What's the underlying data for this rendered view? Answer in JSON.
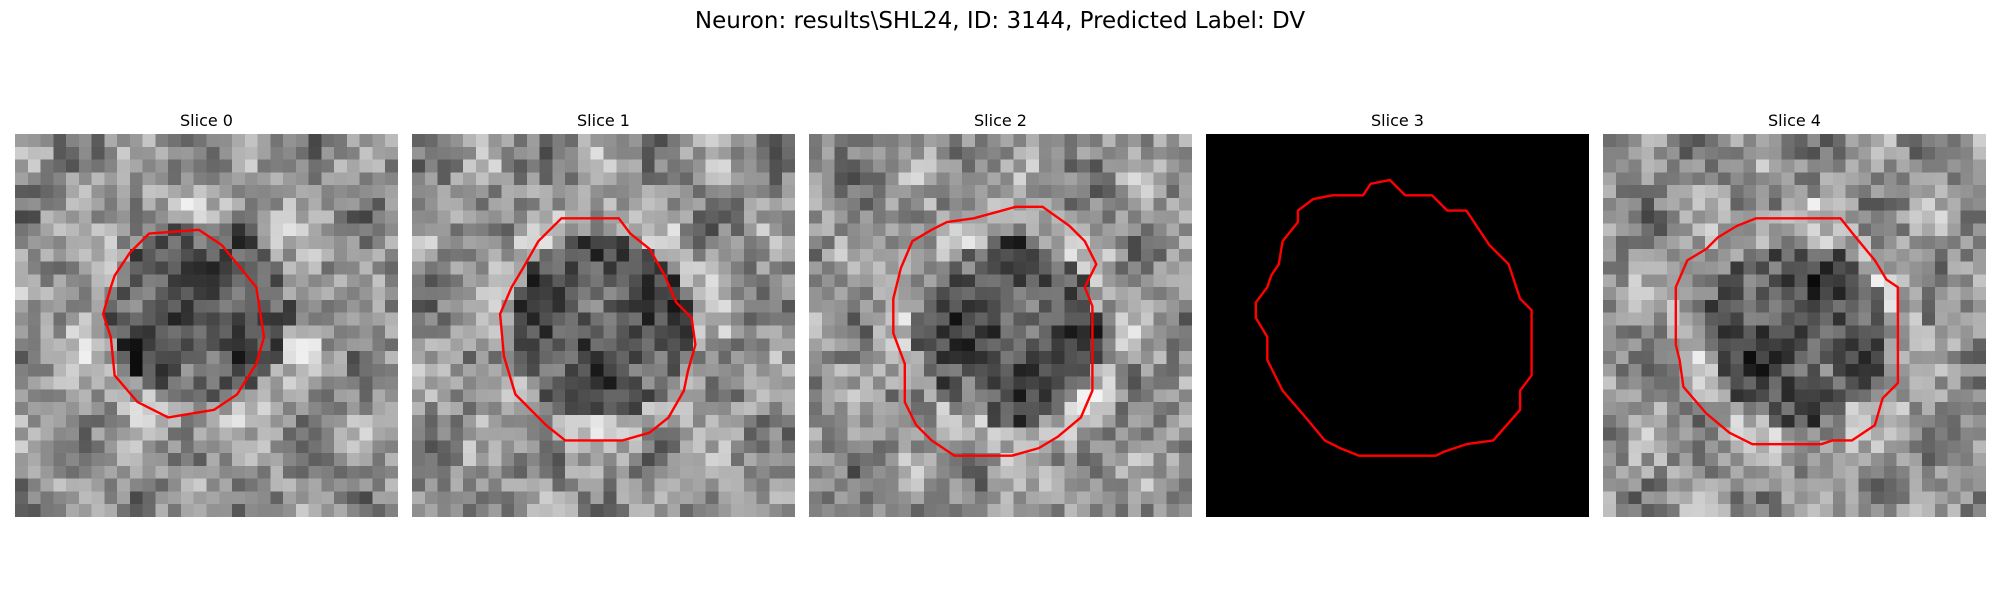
{
  "figure": {
    "title": "Neuron: results\\SHL24, ID: 3144, Predicted Label: DV"
  },
  "contour_color": "#ff0000",
  "slices": [
    {
      "title": "Slice 0",
      "image_kind": "grayscale-noise",
      "seed": 11,
      "dark_center": [
        0.48,
        0.46
      ],
      "contour": [
        [
          0.35,
          0.26
        ],
        [
          0.48,
          0.25
        ],
        [
          0.54,
          0.29
        ],
        [
          0.63,
          0.4
        ],
        [
          0.65,
          0.53
        ],
        [
          0.63,
          0.6
        ],
        [
          0.58,
          0.68
        ],
        [
          0.52,
          0.72
        ],
        [
          0.4,
          0.74
        ],
        [
          0.32,
          0.7
        ],
        [
          0.26,
          0.63
        ],
        [
          0.25,
          0.53
        ],
        [
          0.23,
          0.47
        ],
        [
          0.25,
          0.4
        ],
        [
          0.26,
          0.37
        ],
        [
          0.3,
          0.31
        ]
      ]
    },
    {
      "title": "Slice 1",
      "image_kind": "grayscale-noise",
      "seed": 23,
      "dark_center": [
        0.49,
        0.51
      ],
      "contour": [
        [
          0.39,
          0.22
        ],
        [
          0.54,
          0.22
        ],
        [
          0.57,
          0.26
        ],
        [
          0.62,
          0.3
        ],
        [
          0.66,
          0.37
        ],
        [
          0.69,
          0.44
        ],
        [
          0.73,
          0.48
        ],
        [
          0.74,
          0.55
        ],
        [
          0.72,
          0.62
        ],
        [
          0.71,
          0.67
        ],
        [
          0.67,
          0.74
        ],
        [
          0.62,
          0.78
        ],
        [
          0.55,
          0.8
        ],
        [
          0.4,
          0.8
        ],
        [
          0.35,
          0.76
        ],
        [
          0.27,
          0.68
        ],
        [
          0.24,
          0.58
        ],
        [
          0.23,
          0.47
        ],
        [
          0.26,
          0.4
        ],
        [
          0.29,
          0.35
        ],
        [
          0.33,
          0.28
        ]
      ]
    },
    {
      "title": "Slice 2",
      "image_kind": "grayscale-noise",
      "seed": 37,
      "dark_center": [
        0.52,
        0.52
      ],
      "contour": [
        [
          0.43,
          0.22
        ],
        [
          0.54,
          0.19
        ],
        [
          0.61,
          0.19
        ],
        [
          0.68,
          0.24
        ],
        [
          0.72,
          0.28
        ],
        [
          0.75,
          0.34
        ],
        [
          0.72,
          0.4
        ],
        [
          0.74,
          0.45
        ],
        [
          0.74,
          0.67
        ],
        [
          0.71,
          0.74
        ],
        [
          0.65,
          0.79
        ],
        [
          0.6,
          0.82
        ],
        [
          0.53,
          0.84
        ],
        [
          0.38,
          0.84
        ],
        [
          0.32,
          0.8
        ],
        [
          0.28,
          0.76
        ],
        [
          0.25,
          0.7
        ],
        [
          0.25,
          0.6
        ],
        [
          0.22,
          0.52
        ],
        [
          0.22,
          0.43
        ],
        [
          0.24,
          0.35
        ],
        [
          0.27,
          0.28
        ],
        [
          0.32,
          0.25
        ],
        [
          0.36,
          0.23
        ]
      ]
    },
    {
      "title": "Slice 3",
      "image_kind": "black",
      "seed": 0,
      "dark_center": [
        0.5,
        0.5
      ],
      "contour": [
        [
          0.33,
          0.16
        ],
        [
          0.41,
          0.16
        ],
        [
          0.43,
          0.13
        ],
        [
          0.48,
          0.12
        ],
        [
          0.52,
          0.16
        ],
        [
          0.59,
          0.16
        ],
        [
          0.63,
          0.2
        ],
        [
          0.68,
          0.2
        ],
        [
          0.74,
          0.29
        ],
        [
          0.79,
          0.34
        ],
        [
          0.82,
          0.43
        ],
        [
          0.85,
          0.46
        ],
        [
          0.85,
          0.63
        ],
        [
          0.82,
          0.67
        ],
        [
          0.82,
          0.72
        ],
        [
          0.75,
          0.8
        ],
        [
          0.68,
          0.81
        ],
        [
          0.62,
          0.83
        ],
        [
          0.6,
          0.84
        ],
        [
          0.4,
          0.84
        ],
        [
          0.35,
          0.82
        ],
        [
          0.31,
          0.8
        ],
        [
          0.26,
          0.74
        ],
        [
          0.2,
          0.67
        ],
        [
          0.16,
          0.59
        ],
        [
          0.16,
          0.53
        ],
        [
          0.13,
          0.48
        ],
        [
          0.13,
          0.44
        ],
        [
          0.16,
          0.4
        ],
        [
          0.17,
          0.37
        ],
        [
          0.19,
          0.34
        ],
        [
          0.2,
          0.28
        ],
        [
          0.24,
          0.23
        ],
        [
          0.24,
          0.2
        ],
        [
          0.28,
          0.17
        ]
      ]
    },
    {
      "title": "Slice 4",
      "image_kind": "grayscale-noise",
      "seed": 53,
      "dark_center": [
        0.51,
        0.52
      ],
      "contour": [
        [
          0.4,
          0.22
        ],
        [
          0.62,
          0.22
        ],
        [
          0.66,
          0.27
        ],
        [
          0.71,
          0.33
        ],
        [
          0.74,
          0.38
        ],
        [
          0.77,
          0.4
        ],
        [
          0.77,
          0.65
        ],
        [
          0.73,
          0.69
        ],
        [
          0.71,
          0.76
        ],
        [
          0.65,
          0.8
        ],
        [
          0.6,
          0.8
        ],
        [
          0.57,
          0.81
        ],
        [
          0.39,
          0.81
        ],
        [
          0.33,
          0.78
        ],
        [
          0.27,
          0.73
        ],
        [
          0.21,
          0.66
        ],
        [
          0.2,
          0.59
        ],
        [
          0.19,
          0.55
        ],
        [
          0.19,
          0.4
        ],
        [
          0.22,
          0.33
        ],
        [
          0.27,
          0.3
        ],
        [
          0.3,
          0.27
        ],
        [
          0.35,
          0.24
        ]
      ]
    }
  ]
}
